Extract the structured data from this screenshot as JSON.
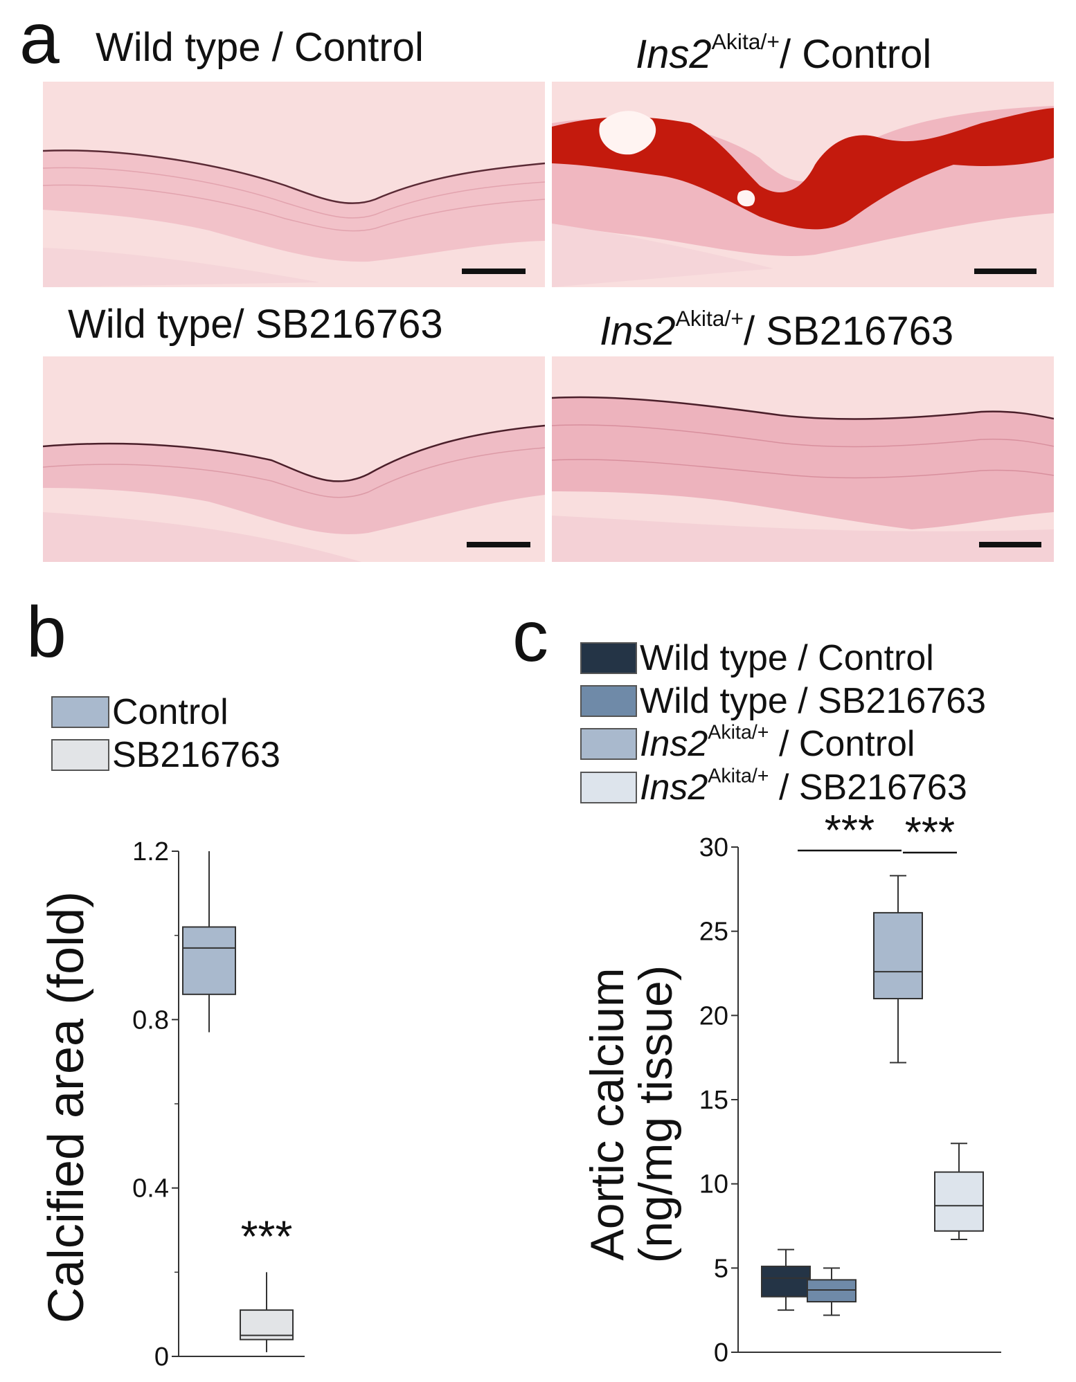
{
  "panel_a": {
    "letter": "a",
    "images": [
      {
        "prefix": "Wild type / Control",
        "italic": "",
        "sup": "",
        "suffix": "",
        "calcified": false
      },
      {
        "prefix": "",
        "italic": "Ins2",
        "sup": "Akita/+",
        "suffix": "/ Control",
        "calcified": true
      },
      {
        "prefix": "Wild type/ SB216763",
        "italic": "",
        "sup": "",
        "suffix": "",
        "calcified": false
      },
      {
        "prefix": "",
        "italic": "Ins2",
        "sup": "Akita/+",
        "suffix": "/ SB216763",
        "calcified": false
      }
    ]
  },
  "panel_b": {
    "letter": "b",
    "legend": [
      {
        "label": "Control",
        "color": "#a9b9cd"
      },
      {
        "label": "SB216763",
        "color": "#e2e4e7"
      }
    ]
  },
  "panel_c": {
    "letter": "c",
    "legend": [
      {
        "label": "Wild type / Control",
        "italic": "",
        "sup": "",
        "color": "#243446"
      },
      {
        "label": "Wild type / SB216763",
        "italic": "",
        "sup": "",
        "color": "#6f8aa8"
      },
      {
        "label": " / Control",
        "italic": "Ins2",
        "sup": "Akita/+",
        "color": "#a9b9cd"
      },
      {
        "label": " / SB216763",
        "italic": "Ins2",
        "sup": "Akita/+",
        "color": "#dde4ec"
      }
    ]
  },
  "chart_data": [
    {
      "type": "box",
      "ylabel": "Calcified area (fold)",
      "xlabel": "",
      "ylim": [
        0,
        1.2
      ],
      "yticks": [
        0,
        0.4,
        0.8,
        1.2
      ],
      "ytick_labels": [
        "0",
        "0.4",
        "0.8",
        "1.2"
      ],
      "categories": [
        "Control",
        "SB216763"
      ],
      "boxes": [
        {
          "name": "Control",
          "min": 0.77,
          "q1": 0.86,
          "median": 0.97,
          "q3": 1.02,
          "max": 1.2,
          "color": "#a9b9cd"
        },
        {
          "name": "SB216763",
          "min": 0.01,
          "q1": 0.04,
          "median": 0.05,
          "q3": 0.11,
          "max": 0.2,
          "color": "#e2e4e7"
        }
      ],
      "annotations": [
        {
          "text": "***",
          "box": 1
        }
      ]
    },
    {
      "type": "box",
      "ylabel_line1": "Aortic calcium",
      "ylabel_line2": "(ng/mg tissue)",
      "xlabel": "",
      "ylim": [
        0,
        30
      ],
      "yticks": [
        0,
        5,
        10,
        15,
        20,
        25,
        30
      ],
      "ytick_labels": [
        "0",
        "5",
        "10",
        "15",
        "20",
        "25",
        "30"
      ],
      "categories": [
        "Wild type / Control",
        "Wild type / SB216763",
        "Ins2Akita/+ / Control",
        "Ins2Akita/+ / SB216763"
      ],
      "boxes": [
        {
          "name": "Wild type / Control",
          "min": 2.5,
          "q1": 3.3,
          "median": 4.4,
          "q3": 5.1,
          "max": 6.1,
          "color": "#243446"
        },
        {
          "name": "Wild type / SB216763",
          "min": 2.2,
          "q1": 3.0,
          "median": 3.7,
          "q3": 4.3,
          "max": 5.0,
          "color": "#6f8aa8"
        },
        {
          "name": "Ins2Akita/+ / Control",
          "min": 17.2,
          "q1": 21.0,
          "median": 22.6,
          "q3": 26.1,
          "max": 28.3,
          "color": "#a9b9cd"
        },
        {
          "name": "Ins2Akita/+ / SB216763",
          "min": 6.7,
          "q1": 7.2,
          "median": 8.7,
          "q3": 10.7,
          "max": 12.4,
          "color": "#dde4ec"
        }
      ],
      "significance": [
        {
          "text": "***",
          "from": 0,
          "to": 2
        },
        {
          "text": "***",
          "from": 2,
          "to": 3
        }
      ]
    }
  ]
}
